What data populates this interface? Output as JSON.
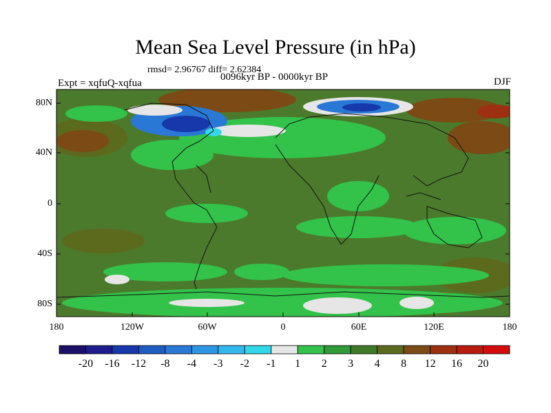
{
  "header": {
    "title": "Mean Sea Level Pressure (in hPa)",
    "stats": "rmsd= 2.96767 diff= 2.62384",
    "experiment": "Expt = xqfuQ-xqfua",
    "period": "0096kyr BP - 0000kyr BP",
    "season": "DJF"
  },
  "axes": {
    "y_ticks": [
      "80N",
      "40N",
      "0",
      "40S",
      "80S"
    ],
    "x_ticks": [
      "180",
      "120W",
      "60W",
      "0",
      "60E",
      "120E",
      "180"
    ]
  },
  "colorbar": {
    "labels": [
      "-20",
      "-16",
      "-12",
      "-8",
      "-4",
      "-3",
      "-2",
      "-1",
      "1",
      "2",
      "3",
      "4",
      "8",
      "12",
      "16",
      "20"
    ],
    "colors": [
      "#1a0f66",
      "#1c1c8c",
      "#1638aa",
      "#1f5cc2",
      "#2a78d6",
      "#2d96e4",
      "#33b8ee",
      "#33d8e8",
      "#e6e6e6",
      "#33c24a",
      "#2e9a38",
      "#3f7a28",
      "#5c6a1e",
      "#7c4a14",
      "#9c3010",
      "#b81c0c",
      "#d40c0c"
    ]
  },
  "map": {
    "background_color": "#4b7a2c"
  }
}
